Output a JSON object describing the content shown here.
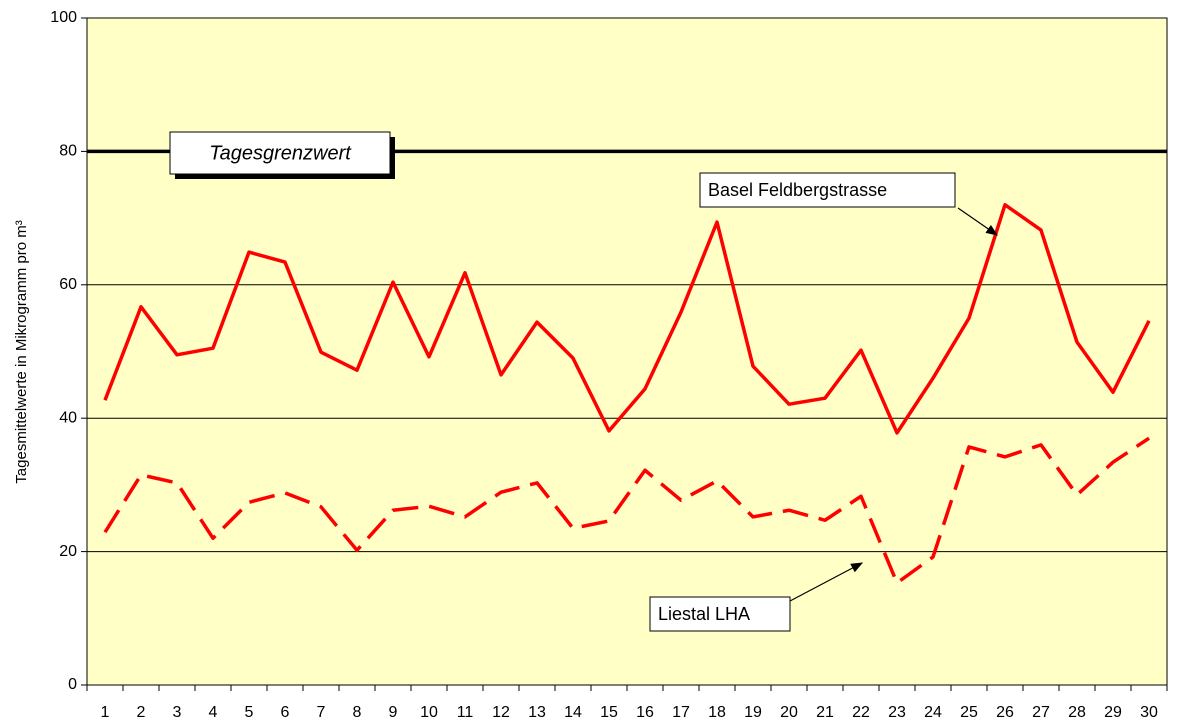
{
  "chart_data": {
    "type": "line",
    "y_label": "Tagesmittelwerte in Mikrogramm pro m³",
    "categories": [
      1,
      2,
      3,
      4,
      5,
      6,
      7,
      8,
      9,
      10,
      11,
      12,
      13,
      14,
      15,
      16,
      17,
      18,
      19,
      20,
      21,
      22,
      23,
      24,
      25,
      26,
      27,
      28,
      29,
      30
    ],
    "series": [
      {
        "name": "Basel Feldbergstrasse",
        "color": "#ff0000",
        "dash": false,
        "values": [
          42.7,
          56.7,
          49.5,
          50.5,
          64.9,
          63.4,
          49.9,
          47.2,
          60.4,
          49.2,
          61.8,
          46.5,
          54.4,
          49,
          38.1,
          44.4,
          55.9,
          69.4,
          47.8,
          42.1,
          43,
          50.2,
          37.8,
          46,
          55,
          72,
          68.2,
          51.4,
          43.9,
          54.6
        ]
      },
      {
        "name": "Liestal LHA",
        "color": "#ff0000",
        "dash": true,
        "values": [
          22.9,
          31.5,
          30.3,
          22,
          27.4,
          28.8,
          26.7,
          20.2,
          26.2,
          26.8,
          25.2,
          28.9,
          30.3,
          23.5,
          24.6,
          32.2,
          27.7,
          30.6,
          25.2,
          26.2,
          24.7,
          28.3,
          15.3,
          19.2,
          35.7,
          34.2,
          36,
          28.5,
          33.4,
          37
        ]
      }
    ],
    "threshold": {
      "value": 80,
      "label": "Tagesgrenzwert"
    },
    "ylim": [
      0,
      100
    ],
    "yticks": [
      0,
      20,
      40,
      60,
      80,
      100
    ],
    "grid": true,
    "background": "#ffffc6"
  }
}
